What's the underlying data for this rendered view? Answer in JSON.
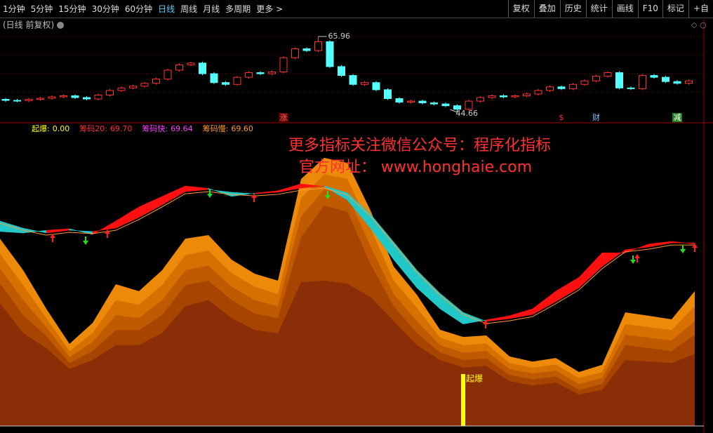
{
  "toolbar": {
    "periods": [
      "1分钟",
      "5分钟",
      "15分钟",
      "30分钟",
      "60分钟",
      "日线",
      "周线",
      "月线",
      "多周期",
      "更多 >"
    ],
    "active": 5,
    "tools": [
      "复权",
      "叠加",
      "历史",
      "统计",
      "画线",
      "F10",
      "标记",
      "+自"
    ]
  },
  "subtitle": "(日线 前复权)",
  "watermark": [
    "更多指标关注微信公众号：程序化指标",
    "官方网址： www.honghaie.com"
  ],
  "chart_data": [
    {
      "type": "candlestick",
      "up_color": "#ff3232",
      "down_color": "#54ffff",
      "open": [
        48.3,
        48.0,
        47.9,
        48.3,
        48.6,
        49.0,
        49.3,
        48.8,
        48.4,
        49.5,
        50.8,
        51.5,
        52.0,
        52.8,
        54.0,
        56.5,
        58.0,
        58.5,
        55.5,
        53.0,
        52.5,
        54.5,
        55.8,
        55.5,
        56.0,
        60.0,
        62.5,
        62.0,
        64.5,
        57.5,
        55.0,
        52.5,
        53.0,
        51.0,
        48.5,
        47.5,
        47.8,
        47.3,
        47.0,
        46.5,
        45.5,
        47.8,
        48.8,
        49.3,
        49.0,
        49.3,
        49.8,
        50.8,
        51.8,
        51.3,
        52.5,
        53.5,
        54.8,
        55.8,
        51.5,
        51.3,
        55.0,
        54.5,
        53.3,
        52.8
      ],
      "close": [
        48.0,
        47.9,
        48.3,
        48.6,
        49.0,
        49.3,
        48.8,
        48.4,
        49.5,
        50.8,
        51.5,
        52.0,
        52.8,
        54.0,
        56.5,
        58.0,
        58.5,
        55.5,
        53.0,
        52.5,
        54.5,
        55.8,
        55.5,
        56.0,
        60.0,
        62.5,
        62.0,
        64.5,
        57.5,
        55.0,
        52.5,
        53.0,
        51.0,
        48.5,
        47.5,
        47.8,
        47.3,
        47.0,
        46.5,
        45.5,
        47.8,
        48.8,
        49.3,
        49.0,
        49.3,
        49.8,
        50.8,
        51.8,
        51.3,
        52.5,
        53.5,
        54.8,
        55.8,
        51.5,
        51.3,
        55.0,
        54.5,
        53.3,
        52.8,
        53.5
      ],
      "high": [
        48.7,
        48.4,
        48.7,
        49.0,
        49.4,
        49.7,
        49.7,
        49.2,
        49.9,
        51.2,
        51.9,
        52.4,
        53.2,
        54.4,
        56.9,
        58.4,
        58.9,
        58.9,
        55.9,
        53.4,
        54.9,
        56.2,
        56.2,
        56.4,
        60.4,
        62.9,
        62.9,
        65.96,
        64.9,
        57.9,
        55.4,
        53.4,
        53.4,
        51.4,
        48.9,
        48.2,
        48.2,
        47.7,
        47.4,
        46.9,
        48.2,
        49.2,
        49.7,
        49.7,
        49.7,
        50.2,
        51.2,
        52.2,
        52.2,
        52.9,
        53.9,
        55.2,
        56.2,
        56.2,
        51.9,
        55.4,
        55.4,
        54.9,
        53.7,
        53.9
      ],
      "low": [
        47.6,
        47.5,
        47.5,
        47.9,
        48.2,
        48.6,
        48.4,
        48.0,
        48.0,
        49.1,
        50.4,
        51.1,
        51.6,
        52.4,
        53.6,
        56.1,
        57.6,
        55.1,
        52.6,
        52.1,
        52.1,
        54.1,
        55.1,
        55.1,
        55.6,
        59.6,
        61.6,
        61.6,
        57.1,
        54.6,
        52.1,
        52.1,
        50.6,
        48.1,
        47.1,
        47.1,
        46.9,
        46.6,
        46.1,
        44.66,
        45.1,
        47.4,
        48.4,
        48.6,
        48.6,
        48.9,
        49.4,
        50.4,
        50.9,
        50.9,
        52.1,
        53.1,
        54.4,
        51.1,
        50.9,
        50.9,
        54.1,
        52.9,
        52.4,
        52.4
      ],
      "markers": [
        {
          "index": 24,
          "label": "涨",
          "color": "#ff6060",
          "bg": "#5a0000"
        },
        {
          "index": 48,
          "label": "$",
          "color": "#ff3030",
          "bg": "#000000"
        },
        {
          "index": 51,
          "label": "财",
          "color": "#80c0ff",
          "bg": "#000000"
        },
        {
          "index": 58,
          "label": "减",
          "color": "#ffffff",
          "bg": "#208020"
        }
      ]
    },
    {
      "type": "chip-indicator",
      "ylim": [
        0,
        100
      ],
      "legend": [
        {
          "name": "起爆:",
          "value": 0,
          "label": "0.00",
          "color": "#ffff00"
        },
        {
          "name": "筹码20:",
          "value": 69.7,
          "label": "69.70",
          "color": "#ff3030"
        },
        {
          "name": "筹码快:",
          "value": 69.64,
          "color": "#ff40ff"
        },
        {
          "name": "筹码慢:",
          "value": 69.6,
          "label": "69.60",
          "color": "#ff9933"
        }
      ],
      "layers": [
        {
          "color": "#ee8a0a",
          "values": [
            62.5,
            52.0,
            39.1,
            27.4,
            34.4,
            47.3,
            45.0,
            52.0,
            62.5,
            63.7,
            55.5,
            50.8,
            48.5,
            82.4,
            89.5,
            87.8,
            71.9,
            53.2,
            43.8,
            32.1,
            29.7,
            30.2,
            23.2,
            21.5,
            22.7,
            18.0,
            20.4,
            37.9,
            36.8,
            35.6,
            45.0
          ]
        },
        {
          "color": "#d87000",
          "values": [
            57.5,
            47,
            36,
            25,
            31,
            42,
            40.5,
            47,
            57,
            58.5,
            51,
            46.5,
            44,
            76,
            84,
            82.5,
            66,
            48.5,
            39.5,
            29.5,
            27,
            27.5,
            21,
            19.5,
            20.5,
            16,
            18,
            34,
            33,
            32,
            40
          ]
        },
        {
          "color": "#c05a00",
          "values": [
            52.5,
            42,
            33,
            23,
            28,
            37,
            36,
            42,
            52,
            53.5,
            46.5,
            42,
            40,
            70,
            79,
            77,
            60,
            44,
            35,
            27,
            24.5,
            25,
            19,
            17.5,
            18.5,
            14,
            16,
            30.5,
            29.5,
            28.5,
            35
          ]
        },
        {
          "color": "#a64400",
          "values": [
            47.5,
            37,
            30,
            21,
            25,
            32,
            32,
            37,
            47,
            48.5,
            42,
            37.5,
            36,
            63,
            73.5,
            71.5,
            54,
            40,
            31,
            24.5,
            22,
            22.5,
            17,
            15.5,
            16.5,
            12,
            14,
            27,
            26,
            25,
            30.5
          ]
        },
        {
          "color": "#8a2e08",
          "values": [
            41,
            31,
            26,
            19,
            22,
            27,
            27,
            31,
            40,
            42,
            36,
            32,
            31,
            48,
            48.5,
            47.5,
            43,
            35,
            27,
            22,
            19.5,
            20,
            15,
            13.5,
            14.5,
            10.5,
            12,
            22,
            21.5,
            21,
            24
          ]
        }
      ],
      "fast": [
        64.9,
        64.4,
        65.3,
        65.8,
        63.9,
        68.4,
        73.1,
        76.6,
        80.1,
        79.3,
        76.6,
        77.7,
        78.5,
        80.8,
        79.9,
        75.4,
        66.0,
        55.5,
        46.1,
        39.1,
        34.0,
        35.4,
        36.8,
        39.1,
        45.0,
        49.6,
        57.8,
        57.8,
        60.7,
        61.6,
        60.7
      ],
      "slow": [
        68.4,
        66.0,
        64.4,
        65.3,
        64.9,
        66.0,
        69.6,
        73.8,
        78.2,
        78.9,
        78.0,
        77.5,
        78.0,
        79.4,
        80.1,
        77.8,
        70.7,
        61.4,
        52.0,
        44.3,
        37.9,
        34.9,
        35.8,
        37.2,
        41.5,
        46.1,
        53.2,
        58.8,
        59.7,
        61.1,
        61.1
      ],
      "up_color": "#ff1010",
      "down_color": "#20c8c8",
      "signal_index": 20,
      "signal_label": "起爆"
    }
  ]
}
